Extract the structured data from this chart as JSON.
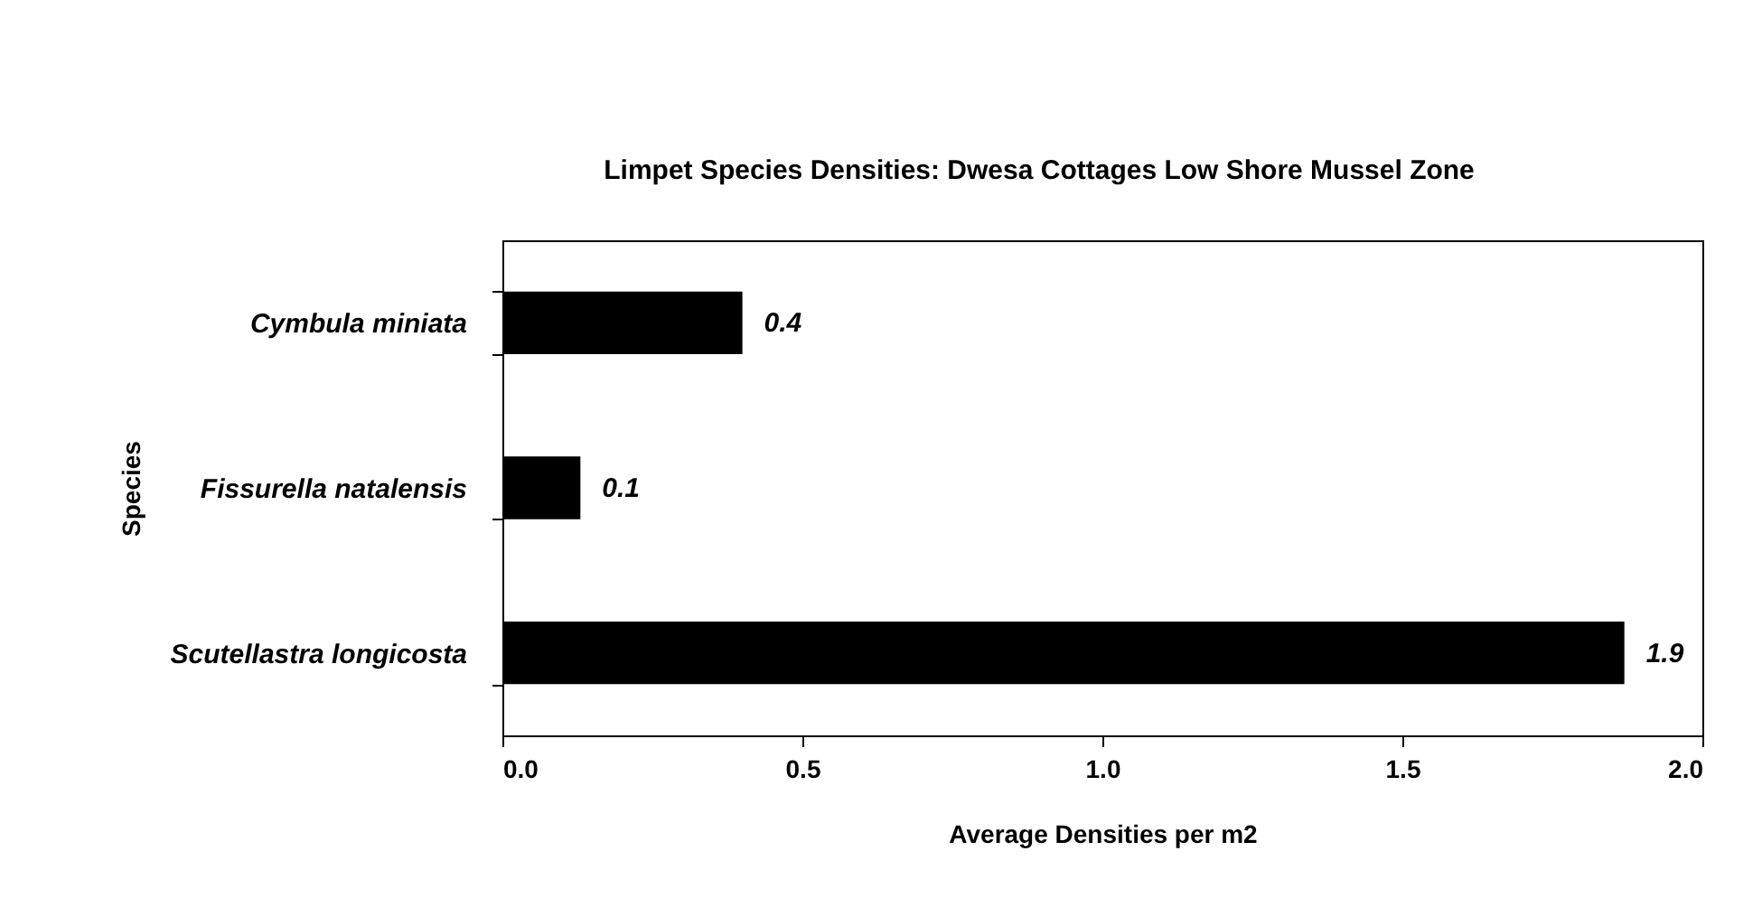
{
  "chart_data": {
    "type": "bar",
    "orientation": "horizontal",
    "title": "Limpet Species Densities: Dwesa Cottages Low Shore Mussel Zone",
    "xlabel": "Average Densities  per m2",
    "ylabel": "Species",
    "categories": [
      "Cymbula miniata",
      "Fissurella natalensis",
      "Scutellastra longicosta"
    ],
    "values": [
      0.4,
      0.13,
      1.87
    ],
    "value_labels": [
      "0.4",
      "0.1",
      "1.9"
    ],
    "color": "#000000",
    "xlim": [
      0,
      2
    ],
    "xticks": [
      {
        "value": 0,
        "label": "0.0"
      },
      {
        "value": 0.5,
        "label": "0.5"
      },
      {
        "value": 1,
        "label": "1.0"
      },
      {
        "value": 1.5,
        "label": "1.5"
      },
      {
        "value": 2,
        "label": "2.0"
      }
    ],
    "grid": false
  }
}
